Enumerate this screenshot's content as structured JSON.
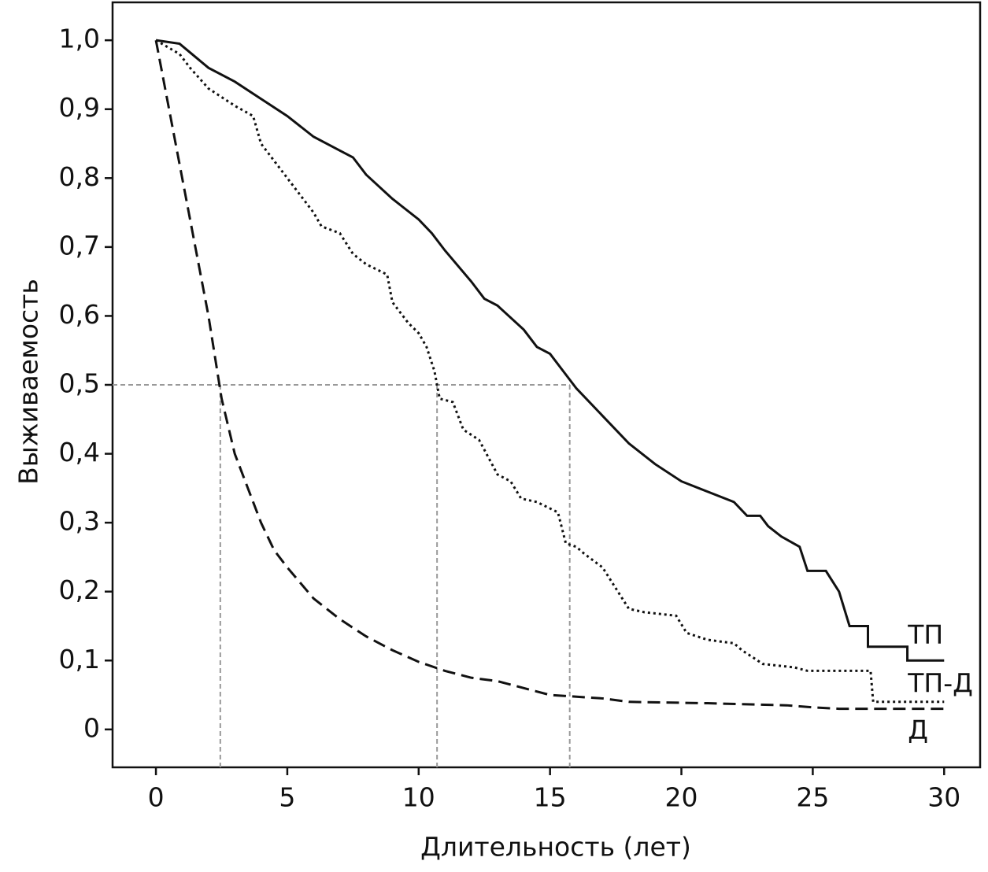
{
  "chart_data": {
    "type": "line",
    "step": false,
    "x_label": "Длительность (лет)",
    "y_label": "Выживаемость",
    "xlim": [
      -1.65,
      31.37
    ],
    "ylim": [
      -0.055,
      1.055
    ],
    "xticks": [
      0,
      5,
      10,
      15,
      20,
      25,
      30
    ],
    "yticks": [
      0,
      {
        "value": 0.1,
        "label": "0,1"
      },
      {
        "value": 0.2,
        "label": "0,2"
      },
      {
        "value": 0.3,
        "label": "0,3"
      },
      {
        "value": 0.4,
        "label": "0,4"
      },
      {
        "value": 0.5,
        "label": "0,5"
      },
      {
        "value": 0.6,
        "label": "0,6"
      },
      {
        "value": 0.7,
        "label": "0,7"
      },
      {
        "value": 0.8,
        "label": "0,8"
      },
      {
        "value": 0.9,
        "label": "0,9"
      },
      {
        "value": 1.0,
        "label": "1,0"
      }
    ],
    "grid": false,
    "legend": "end-labels",
    "median_lines": {
      "y": 0.5,
      "x": [
        2.45,
        10.7,
        15.75
      ],
      "color": "#999999"
    },
    "series": [
      {
        "name": "ТП",
        "color": "#111111",
        "dash": "solid",
        "x": [
          0,
          0.9,
          2,
          3,
          4,
          5,
          6,
          7,
          7.5,
          8,
          9,
          10,
          10.5,
          11,
          12,
          12.5,
          13,
          14,
          14.5,
          15,
          15.5,
          16,
          17,
          18,
          19,
          20,
          21,
          22,
          22.5,
          23,
          23.3,
          23.8,
          24.5,
          24.8,
          25.5,
          26,
          26.4,
          27.1,
          27.1,
          28.6,
          28.6,
          30
        ],
        "values": [
          1,
          0.995,
          0.96,
          0.94,
          0.915,
          0.89,
          0.86,
          0.84,
          0.83,
          0.805,
          0.77,
          0.74,
          0.72,
          0.695,
          0.65,
          0.625,
          0.615,
          0.58,
          0.555,
          0.545,
          0.52,
          0.495,
          0.455,
          0.415,
          0.385,
          0.36,
          0.345,
          0.33,
          0.31,
          0.31,
          0.295,
          0.28,
          0.265,
          0.23,
          0.23,
          0.2,
          0.15,
          0.15,
          0.12,
          0.12,
          0.1,
          0.1
        ]
      },
      {
        "name": "ТП-Д",
        "color": "#111111",
        "dash": "dotted",
        "x": [
          0,
          0.9,
          1.3,
          2,
          3,
          3.7,
          4,
          5,
          6,
          6.3,
          7,
          7.5,
          8,
          8.8,
          9,
          9.6,
          10,
          10.3,
          10.6,
          10.8,
          11.3,
          11.7,
          12.3,
          13,
          13.5,
          13.9,
          14.5,
          15.3,
          15.6,
          16,
          16.3,
          17,
          17.5,
          18,
          18.6,
          19.8,
          20.2,
          21,
          22,
          22.3,
          23.1,
          24.3,
          24.8,
          27.2,
          27.3,
          30
        ],
        "values": [
          1,
          0.98,
          0.96,
          0.93,
          0.905,
          0.89,
          0.85,
          0.8,
          0.75,
          0.73,
          0.72,
          0.69,
          0.675,
          0.66,
          0.62,
          0.59,
          0.575,
          0.555,
          0.52,
          0.48,
          0.475,
          0.435,
          0.42,
          0.37,
          0.36,
          0.335,
          0.33,
          0.315,
          0.27,
          0.265,
          0.255,
          0.235,
          0.205,
          0.175,
          0.17,
          0.165,
          0.14,
          0.13,
          0.125,
          0.115,
          0.095,
          0.09,
          0.085,
          0.085,
          0.04,
          0.04
        ]
      },
      {
        "name": "Д",
        "color": "#111111",
        "dash": "dashed",
        "x": [
          0,
          0.5,
          1,
          1.5,
          2,
          2.5,
          3,
          3.5,
          4,
          4.5,
          5,
          6,
          7,
          8,
          9,
          10,
          11,
          12,
          13,
          14,
          15,
          17,
          18,
          21,
          24,
          25,
          26,
          30
        ],
        "values": [
          1,
          0.9,
          0.8,
          0.7,
          0.6,
          0.48,
          0.4,
          0.35,
          0.3,
          0.26,
          0.235,
          0.19,
          0.16,
          0.135,
          0.115,
          0.098,
          0.085,
          0.075,
          0.07,
          0.06,
          0.05,
          0.045,
          0.04,
          0.038,
          0.035,
          0.032,
          0.03,
          0.03
        ]
      }
    ]
  }
}
